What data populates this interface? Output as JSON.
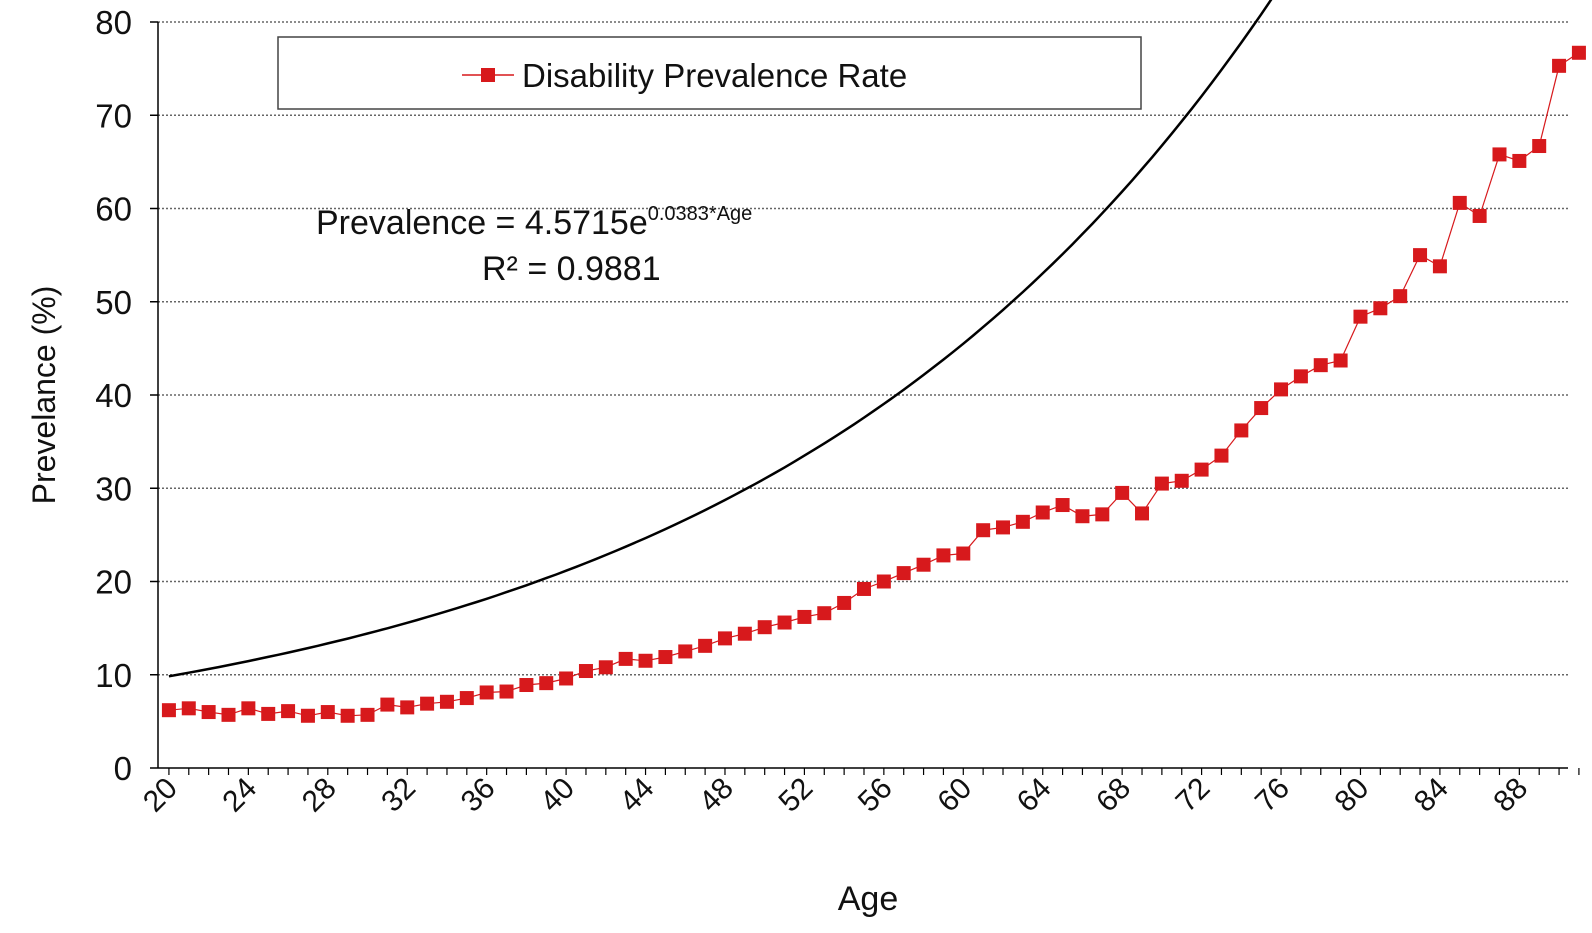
{
  "chart_data": {
    "type": "scatter",
    "xlabel": "Age",
    "ylabel": "Prevelance (%)",
    "xlim": [
      20,
      91
    ],
    "ylim": [
      0,
      80
    ],
    "x_ticks": [
      "20",
      "24",
      "28",
      "32",
      "36",
      "40",
      "44",
      "48",
      "52",
      "56",
      "60",
      "64",
      "68",
      "72",
      "76",
      "80",
      "84",
      "88"
    ],
    "y_ticks": [
      "0",
      "10",
      "20",
      "30",
      "40",
      "50",
      "60",
      "70",
      "80"
    ],
    "grid": "horizontal dotted",
    "legend": {
      "position": "top",
      "label": "Disability Prevalence Rate"
    },
    "series": [
      {
        "name": "Disability Prevalence Rate",
        "color": "#d7191c",
        "marker": "square",
        "x": [
          20,
          21,
          22,
          23,
          24,
          25,
          26,
          27,
          28,
          29,
          30,
          31,
          32,
          33,
          34,
          35,
          36,
          37,
          38,
          39,
          40,
          41,
          42,
          43,
          44,
          45,
          46,
          47,
          48,
          49,
          50,
          51,
          52,
          53,
          54,
          55,
          56,
          57,
          58,
          59,
          60,
          61,
          62,
          63,
          64,
          65,
          66,
          67,
          68,
          69,
          70,
          71,
          72,
          73,
          74,
          75,
          76,
          77,
          78,
          79,
          80,
          81,
          82,
          83,
          84,
          85,
          86,
          87,
          88,
          89,
          90,
          91
        ],
        "y": [
          6.2,
          6.4,
          6.0,
          5.7,
          6.4,
          5.8,
          6.1,
          5.6,
          6.0,
          5.6,
          5.7,
          6.8,
          6.5,
          6.9,
          7.1,
          7.5,
          8.1,
          8.2,
          8.9,
          9.1,
          9.6,
          10.4,
          10.8,
          11.7,
          11.5,
          11.9,
          12.5,
          13.1,
          13.9,
          14.4,
          15.1,
          15.6,
          16.2,
          16.6,
          17.7,
          19.2,
          20.0,
          20.9,
          21.8,
          22.8,
          23.0,
          25.5,
          25.8,
          26.4,
          27.4,
          28.2,
          27.0,
          27.2,
          29.5,
          27.3,
          30.5,
          30.8,
          32.0,
          33.5,
          36.2,
          38.6,
          40.6,
          42.0,
          43.2,
          43.7,
          48.4,
          49.3,
          50.6,
          55.0,
          53.8,
          60.6,
          59.2,
          65.8,
          65.1,
          66.7,
          75.3,
          76.7
        ]
      }
    ],
    "trendline": {
      "type": "exponential",
      "color": "#000000",
      "a": 4.5715,
      "b": 0.0383,
      "equation_prefix": "Prevalence = 4.5715e",
      "equation_exponent": "0.0383*Age",
      "r2_text": "R² = 0.9881"
    }
  }
}
